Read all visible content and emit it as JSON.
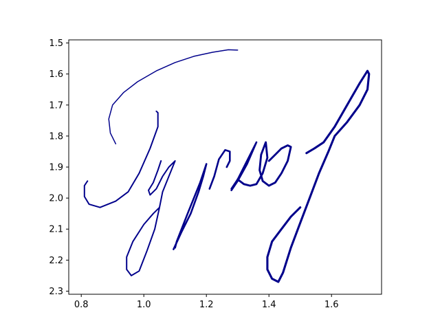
{
  "chart_data": {
    "type": "line",
    "title": "",
    "xlabel": "",
    "ylabel": "",
    "xlim": [
      0.76,
      1.76
    ],
    "ylim": [
      2.31,
      1.49
    ],
    "y_inverted": true,
    "grid": false,
    "legend": "none",
    "x_ticks": [
      {
        "value": 0.8,
        "label": "0.8"
      },
      {
        "value": 1.0,
        "label": "1.0"
      },
      {
        "value": 1.2,
        "label": "1.2"
      },
      {
        "value": 1.4,
        "label": "1.4"
      },
      {
        "value": 1.6,
        "label": "1.6"
      }
    ],
    "y_ticks": [
      {
        "value": 1.5,
        "label": "1.5"
      },
      {
        "value": 1.6,
        "label": "1.6"
      },
      {
        "value": 1.7,
        "label": "1.7"
      },
      {
        "value": 1.8,
        "label": "1.8"
      },
      {
        "value": 1.9,
        "label": "1.9"
      },
      {
        "value": 2.0,
        "label": "2.0"
      },
      {
        "value": 2.1,
        "label": "2.1"
      },
      {
        "value": 2.2,
        "label": "2.2"
      },
      {
        "value": 2.3,
        "label": "2.3"
      }
    ],
    "color": "#00008b",
    "series": [
      {
        "points": [
          [
            0.91,
            1.825
          ],
          [
            0.893,
            1.79
          ],
          [
            0.888,
            1.745
          ],
          [
            0.9,
            1.7
          ],
          [
            0.935,
            1.66
          ],
          [
            0.98,
            1.625
          ],
          [
            1.04,
            1.59
          ],
          [
            1.1,
            1.563
          ],
          [
            1.16,
            1.543
          ],
          [
            1.22,
            1.53
          ],
          [
            1.27,
            1.522
          ],
          [
            1.3,
            1.523
          ]
        ]
      },
      {
        "points": [
          [
            1.04,
            1.72
          ],
          [
            1.045,
            1.725
          ],
          [
            1.045,
            1.77
          ],
          [
            1.02,
            1.84
          ],
          [
            0.985,
            1.92
          ],
          [
            0.95,
            1.98
          ],
          [
            0.91,
            2.01
          ],
          [
            0.86,
            2.03
          ],
          [
            0.825,
            2.02
          ],
          [
            0.81,
            1.995
          ],
          [
            0.81,
            1.96
          ],
          [
            0.82,
            1.945
          ]
        ]
      },
      {
        "points": [
          [
            1.055,
            1.88
          ],
          [
            1.045,
            1.91
          ],
          [
            1.03,
            1.95
          ],
          [
            1.015,
            1.975
          ],
          [
            1.02,
            1.99
          ],
          [
            1.04,
            1.97
          ],
          [
            1.06,
            1.93
          ],
          [
            1.08,
            1.9
          ],
          [
            1.1,
            1.88
          ],
          [
            1.08,
            1.93
          ],
          [
            1.06,
            1.98
          ],
          [
            1.05,
            2.03
          ],
          [
            1.035,
            2.1
          ],
          [
            1.01,
            2.17
          ],
          [
            0.985,
            2.235
          ],
          [
            0.96,
            2.25
          ],
          [
            0.945,
            2.23
          ],
          [
            0.945,
            2.19
          ],
          [
            0.965,
            2.14
          ],
          [
            1.0,
            2.085
          ],
          [
            1.03,
            2.05
          ],
          [
            1.05,
            2.03
          ]
        ]
      },
      {
        "points": [
          [
            1.095,
            2.165
          ],
          [
            1.12,
            2.11
          ],
          [
            1.15,
            2.05
          ],
          [
            1.175,
            1.98
          ],
          [
            1.19,
            1.93
          ],
          [
            1.2,
            1.89
          ],
          [
            1.18,
            1.95
          ],
          [
            1.14,
            2.05
          ],
          [
            1.105,
            2.14
          ],
          [
            1.1,
            2.16
          ]
        ]
      },
      {
        "points": [
          [
            1.21,
            1.97
          ],
          [
            1.225,
            1.93
          ],
          [
            1.24,
            1.875
          ],
          [
            1.26,
            1.845
          ],
          [
            1.275,
            1.85
          ],
          [
            1.275,
            1.88
          ],
          [
            1.265,
            1.9
          ]
        ]
      },
      {
        "points": [
          [
            1.28,
            1.975
          ],
          [
            1.3,
            1.945
          ],
          [
            1.33,
            1.89
          ],
          [
            1.36,
            1.82
          ],
          [
            1.34,
            1.86
          ],
          [
            1.3,
            1.94
          ],
          [
            1.28,
            1.97
          ]
        ]
      },
      {
        "points": [
          [
            1.3,
            1.94
          ],
          [
            1.32,
            1.955
          ],
          [
            1.34,
            1.96
          ],
          [
            1.36,
            1.955
          ],
          [
            1.38,
            1.92
          ],
          [
            1.395,
            1.87
          ],
          [
            1.39,
            1.82
          ],
          [
            1.375,
            1.86
          ],
          [
            1.37,
            1.91
          ],
          [
            1.38,
            1.945
          ],
          [
            1.4,
            1.96
          ],
          [
            1.42,
            1.95
          ],
          [
            1.44,
            1.92
          ],
          [
            1.46,
            1.88
          ],
          [
            1.47,
            1.835
          ],
          [
            1.46,
            1.83
          ],
          [
            1.44,
            1.84
          ],
          [
            1.42,
            1.86
          ],
          [
            1.4,
            1.88
          ]
        ]
      },
      {
        "points": [
          [
            1.52,
            1.855
          ],
          [
            1.545,
            1.84
          ],
          [
            1.575,
            1.82
          ],
          [
            1.61,
            1.77
          ],
          [
            1.65,
            1.7
          ],
          [
            1.69,
            1.63
          ],
          [
            1.715,
            1.59
          ],
          [
            1.72,
            1.6
          ],
          [
            1.715,
            1.65
          ],
          [
            1.69,
            1.7
          ],
          [
            1.65,
            1.755
          ],
          [
            1.61,
            1.8
          ],
          [
            1.59,
            1.85
          ],
          [
            1.56,
            1.92
          ],
          [
            1.53,
            2.0
          ],
          [
            1.5,
            2.08
          ],
          [
            1.47,
            2.16
          ],
          [
            1.445,
            2.24
          ],
          [
            1.43,
            2.27
          ],
          [
            1.41,
            2.26
          ],
          [
            1.395,
            2.23
          ],
          [
            1.395,
            2.19
          ],
          [
            1.41,
            2.14
          ],
          [
            1.44,
            2.1
          ],
          [
            1.47,
            2.06
          ],
          [
            1.5,
            2.03
          ]
        ]
      }
    ]
  }
}
